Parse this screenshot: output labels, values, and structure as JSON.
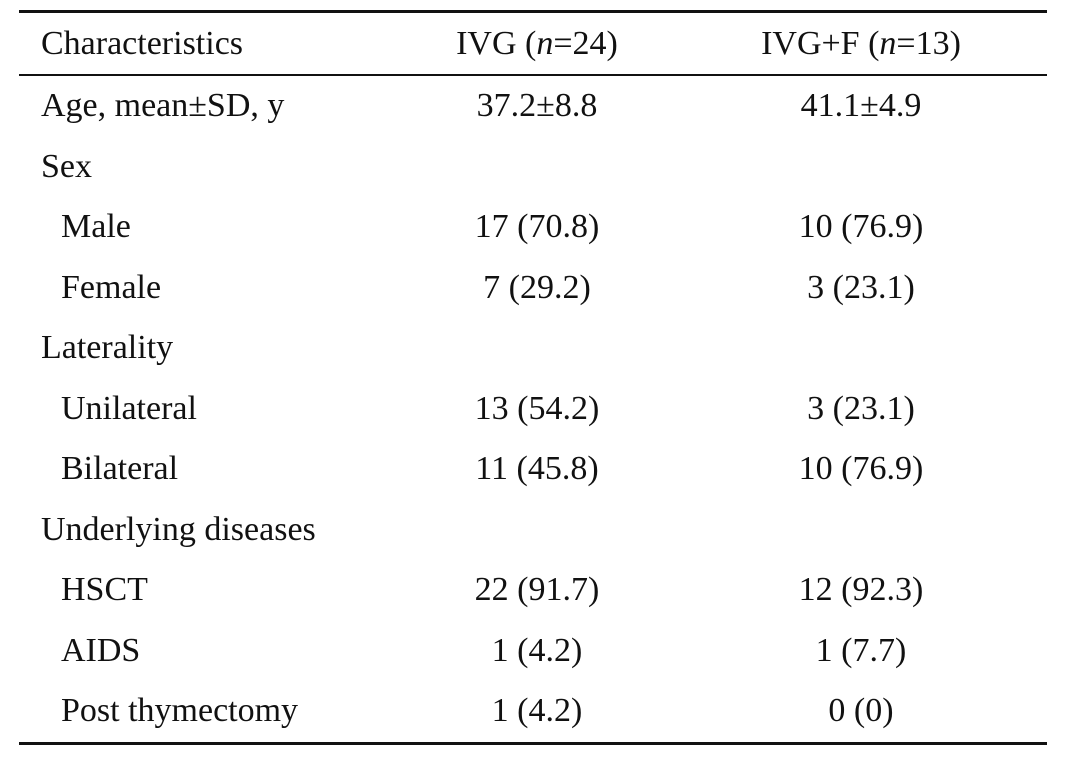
{
  "table": {
    "header": {
      "characteristics": "Characteristics",
      "ivg_prefix": "IVG (",
      "ivg_n": "n",
      "ivg_suffix": "=24)",
      "ivgf_prefix": "IVG+F (",
      "ivgf_n": "n",
      "ivgf_suffix": "=13)"
    },
    "rows": [
      {
        "label": "Age, mean±SD, y",
        "ivg": "37.2±8.8",
        "ivgf": "41.1±4.9"
      },
      {
        "label": "Sex",
        "ivg": "",
        "ivgf": ""
      },
      {
        "label": "Male",
        "ivg": "17 (70.8)",
        "ivgf": "10 (76.9)"
      },
      {
        "label": "Female",
        "ivg": "7 (29.2)",
        "ivgf": "3 (23.1)"
      },
      {
        "label": "Laterality",
        "ivg": "",
        "ivgf": ""
      },
      {
        "label": "Unilateral",
        "ivg": "13 (54.2)",
        "ivgf": "3 (23.1)"
      },
      {
        "label": "Bilateral",
        "ivg": "11 (45.8)",
        "ivgf": "10 (76.9)"
      },
      {
        "label": "Underlying diseases",
        "ivg": "",
        "ivgf": ""
      },
      {
        "label": "HSCT",
        "ivg": "22 (91.7)",
        "ivgf": "12 (92.3)"
      },
      {
        "label": "AIDS",
        "ivg": "1 (4.2)",
        "ivgf": "1 (7.7)"
      },
      {
        "label": "Post thymectomy",
        "ivg": "1 (4.2)",
        "ivgf": "0 (0)"
      }
    ]
  }
}
